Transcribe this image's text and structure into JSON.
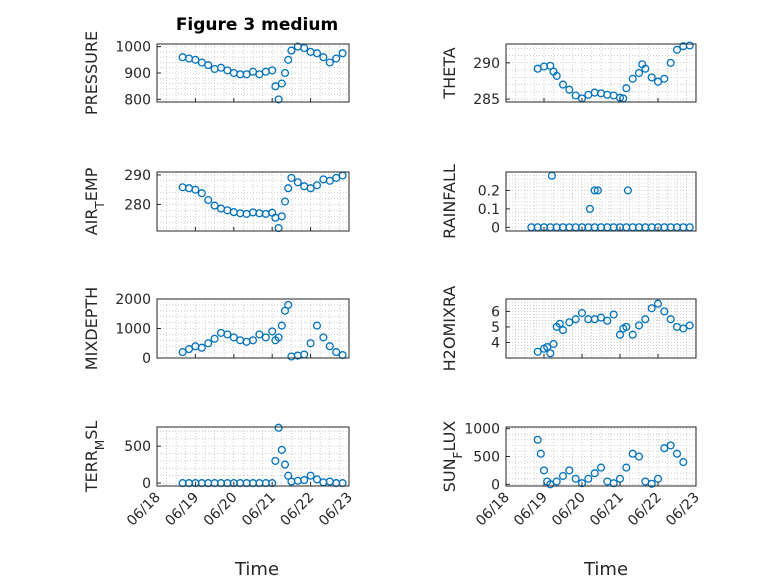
{
  "figure": {
    "title": "Figure 3 medium",
    "xlabel": "Time"
  },
  "colors": {
    "marker": "#0072BD",
    "axis": "#262626",
    "grid": "#b0b0b0"
  },
  "chart_data": [
    {
      "type": "scatter",
      "ylabel": "PRESSURE",
      "ylim": [
        790,
        1010
      ],
      "yticks": [
        800,
        900,
        1000
      ],
      "xlim": [
        "06/18",
        "06/23"
      ],
      "xticks": [
        "06/18",
        "06/19",
        "06/20",
        "06/21",
        "06/22",
        "06/23"
      ],
      "x": [
        "06/18 16:00",
        "06/18 20:00",
        "06/19 00:00",
        "06/19 04:00",
        "06/19 08:00",
        "06/19 12:00",
        "06/19 16:00",
        "06/19 20:00",
        "06/20 00:00",
        "06/20 04:00",
        "06/20 08:00",
        "06/20 12:00",
        "06/20 16:00",
        "06/20 20:00",
        "06/21 00:00",
        "06/21 02:00",
        "06/21 04:00",
        "06/21 06:00",
        "06/21 08:00",
        "06/21 10:00",
        "06/21 12:00",
        "06/21 16:00",
        "06/21 20:00",
        "06/22 00:00",
        "06/22 04:00",
        "06/22 08:00",
        "06/22 12:00",
        "06/22 16:00",
        "06/22 20:00"
      ],
      "y": [
        960,
        955,
        950,
        940,
        930,
        915,
        920,
        910,
        900,
        895,
        895,
        905,
        895,
        905,
        910,
        850,
        800,
        860,
        900,
        950,
        985,
        1000,
        995,
        980,
        975,
        960,
        940,
        955,
        975
      ]
    },
    {
      "type": "scatter",
      "ylabel": "THETA",
      "ylim": [
        284.6,
        292.6
      ],
      "yticks": [
        285,
        290
      ],
      "xlim": [
        "06/18",
        "06/23"
      ],
      "xticks": [
        "06/18",
        "06/19",
        "06/20",
        "06/21",
        "06/22",
        "06/23"
      ],
      "x": [
        "06/18 20:00",
        "06/19 00:00",
        "06/19 04:00",
        "06/19 06:00",
        "06/19 08:00",
        "06/19 12:00",
        "06/19 16:00",
        "06/19 20:00",
        "06/20 00:00",
        "06/20 04:00",
        "06/20 08:00",
        "06/20 12:00",
        "06/20 16:00",
        "06/20 20:00",
        "06/21 00:00",
        "06/21 02:00",
        "06/21 04:00",
        "06/21 08:00",
        "06/21 12:00",
        "06/21 14:00",
        "06/21 16:00",
        "06/21 20:00",
        "06/22 00:00",
        "06/22 04:00",
        "06/22 08:00",
        "06/22 12:00",
        "06/22 16:00",
        "06/22 20:00"
      ],
      "y": [
        289.2,
        289.5,
        289.6,
        288.8,
        288.2,
        287.0,
        286.3,
        285.5,
        285.1,
        285.6,
        285.9,
        285.8,
        285.6,
        285.5,
        285.2,
        285.1,
        286.5,
        287.8,
        288.6,
        289.8,
        289.2,
        288.0,
        287.4,
        287.8,
        290.0,
        291.8,
        292.3,
        292.4
      ]
    },
    {
      "type": "scatter",
      "ylabel": "AIR_TEMP",
      "ylim": [
        271,
        291
      ],
      "yticks": [
        280,
        290
      ],
      "xlim": [
        "06/18",
        "06/23"
      ],
      "xticks": [
        "06/18",
        "06/19",
        "06/20",
        "06/21",
        "06/22",
        "06/23"
      ],
      "x": [
        "06/18 16:00",
        "06/18 20:00",
        "06/19 00:00",
        "06/19 04:00",
        "06/19 08:00",
        "06/19 12:00",
        "06/19 16:00",
        "06/19 20:00",
        "06/20 00:00",
        "06/20 04:00",
        "06/20 08:00",
        "06/20 12:00",
        "06/20 16:00",
        "06/20 20:00",
        "06/21 00:00",
        "06/21 02:00",
        "06/21 04:00",
        "06/21 06:00",
        "06/21 08:00",
        "06/21 10:00",
        "06/21 12:00",
        "06/21 16:00",
        "06/21 20:00",
        "06/22 00:00",
        "06/22 04:00",
        "06/22 08:00",
        "06/22 12:00",
        "06/22 16:00",
        "06/22 20:00"
      ],
      "y": [
        285.8,
        285.5,
        285.0,
        283.8,
        281.5,
        279.6,
        278.6,
        278.0,
        277.4,
        277.0,
        276.8,
        277.3,
        277.0,
        276.8,
        277.2,
        275.5,
        272.0,
        276.0,
        281.0,
        285.5,
        289.0,
        287.5,
        286.2,
        285.5,
        286.5,
        288.5,
        288.0,
        289.0,
        289.8
      ]
    },
    {
      "type": "scatter",
      "ylabel": "RAINFALL",
      "ylim": [
        -0.02,
        0.3
      ],
      "yticks": [
        0,
        0.1,
        0.2
      ],
      "xlim": [
        "06/18",
        "06/23"
      ],
      "xticks": [
        "06/18",
        "06/19",
        "06/20",
        "06/21",
        "06/22",
        "06/23"
      ],
      "x": [
        "06/18 16:00",
        "06/18 20:00",
        "06/19 00:00",
        "06/19 04:00",
        "06/19 08:00",
        "06/19 12:00",
        "06/19 16:00",
        "06/19 20:00",
        "06/20 00:00",
        "06/20 04:00",
        "06/20 08:00",
        "06/20 12:00",
        "06/20 16:00",
        "06/20 20:00",
        "06/21 00:00",
        "06/21 04:00",
        "06/21 08:00",
        "06/21 12:00",
        "06/21 16:00",
        "06/21 20:00",
        "06/22 00:00",
        "06/22 04:00",
        "06/22 08:00",
        "06/22 12:00",
        "06/22 16:00",
        "06/22 20:00",
        "06/19 05:00",
        "06/20 05:00",
        "06/20 08:00",
        "06/20 10:00",
        "06/21 05:00"
      ],
      "y": [
        0,
        0,
        0,
        0,
        0,
        0,
        0,
        0,
        0,
        0,
        0,
        0,
        0,
        0,
        0,
        0,
        0,
        0,
        0,
        0,
        0,
        0,
        0,
        0,
        0,
        0,
        0.28,
        0.1,
        0.2,
        0.2,
        0.2
      ]
    },
    {
      "type": "scatter",
      "ylabel": "MIXDEPTH",
      "ylim": [
        0,
        2000
      ],
      "yticks": [
        0,
        1000,
        2000
      ],
      "xlim": [
        "06/18",
        "06/23"
      ],
      "xticks": [
        "06/18",
        "06/19",
        "06/20",
        "06/21",
        "06/22",
        "06/23"
      ],
      "x": [
        "06/18 16:00",
        "06/18 20:00",
        "06/19 00:00",
        "06/19 04:00",
        "06/19 08:00",
        "06/19 12:00",
        "06/19 16:00",
        "06/19 20:00",
        "06/20 00:00",
        "06/20 04:00",
        "06/20 08:00",
        "06/20 12:00",
        "06/20 16:00",
        "06/20 20:00",
        "06/21 00:00",
        "06/21 02:00",
        "06/21 04:00",
        "06/21 06:00",
        "06/21 08:00",
        "06/21 10:00",
        "06/21 12:00",
        "06/21 16:00",
        "06/21 20:00",
        "06/22 00:00",
        "06/22 04:00",
        "06/22 08:00",
        "06/22 12:00",
        "06/22 16:00",
        "06/22 20:00"
      ],
      "y": [
        200,
        300,
        400,
        350,
        500,
        650,
        850,
        800,
        700,
        600,
        550,
        600,
        800,
        700,
        900,
        600,
        700,
        1100,
        1600,
        1800,
        50,
        80,
        120,
        500,
        1100,
        700,
        400,
        200,
        100
      ]
    },
    {
      "type": "scatter",
      "ylabel": "H2OMIXRA",
      "ylim": [
        3.0,
        6.8
      ],
      "yticks": [
        4,
        5,
        6
      ],
      "xlim": [
        "06/18",
        "06/23"
      ],
      "xticks": [
        "06/18",
        "06/19",
        "06/20",
        "06/21",
        "06/22",
        "06/23"
      ],
      "x": [
        "06/18 20:00",
        "06/19 00:00",
        "06/19 02:00",
        "06/19 04:00",
        "06/19 06:00",
        "06/19 08:00",
        "06/19 10:00",
        "06/19 12:00",
        "06/19 16:00",
        "06/19 20:00",
        "06/20 00:00",
        "06/20 04:00",
        "06/20 08:00",
        "06/20 12:00",
        "06/20 16:00",
        "06/20 20:00",
        "06/21 00:00",
        "06/21 02:00",
        "06/21 04:00",
        "06/21 08:00",
        "06/21 12:00",
        "06/21 16:00",
        "06/21 20:00",
        "06/22 00:00",
        "06/22 04:00",
        "06/22 08:00",
        "06/22 12:00",
        "06/22 16:00",
        "06/22 20:00"
      ],
      "y": [
        3.4,
        3.6,
        3.7,
        3.3,
        3.9,
        5.0,
        5.2,
        4.8,
        5.3,
        5.5,
        5.9,
        5.5,
        5.5,
        5.6,
        5.4,
        5.8,
        4.5,
        4.9,
        5.0,
        4.5,
        5.1,
        5.5,
        6.2,
        6.5,
        6.0,
        5.5,
        5.0,
        4.9,
        5.1
      ]
    },
    {
      "type": "scatter",
      "ylabel": "TERR_MSL",
      "ylim": [
        -40,
        760
      ],
      "yticks": [
        0,
        500
      ],
      "xlim": [
        "06/18",
        "06/23"
      ],
      "xticks": [
        "06/18",
        "06/19",
        "06/20",
        "06/21",
        "06/22",
        "06/23"
      ],
      "x": [
        "06/18 16:00",
        "06/18 20:00",
        "06/19 00:00",
        "06/19 04:00",
        "06/19 08:00",
        "06/19 12:00",
        "06/19 16:00",
        "06/19 20:00",
        "06/20 00:00",
        "06/20 04:00",
        "06/20 08:00",
        "06/20 12:00",
        "06/20 16:00",
        "06/20 20:00",
        "06/21 00:00",
        "06/21 02:00",
        "06/21 04:00",
        "06/21 06:00",
        "06/21 08:00",
        "06/21 10:00",
        "06/21 12:00",
        "06/21 16:00",
        "06/21 20:00",
        "06/22 00:00",
        "06/22 04:00",
        "06/22 08:00",
        "06/22 12:00",
        "06/22 16:00",
        "06/22 20:00"
      ],
      "y": [
        0,
        0,
        0,
        0,
        0,
        0,
        0,
        0,
        0,
        0,
        0,
        0,
        0,
        0,
        0,
        300,
        750,
        450,
        250,
        100,
        20,
        30,
        40,
        100,
        50,
        10,
        20,
        0,
        0
      ]
    },
    {
      "type": "scatter",
      "ylabel": "SUN_FLUX",
      "ylim": [
        -30,
        1030
      ],
      "yticks": [
        0,
        500,
        1000
      ],
      "xlim": [
        "06/18",
        "06/23"
      ],
      "xticks": [
        "06/18",
        "06/19",
        "06/20",
        "06/21",
        "06/22",
        "06/23"
      ],
      "x": [
        "06/18 20:00",
        "06/18 22:00",
        "06/19 00:00",
        "06/19 02:00",
        "06/19 04:00",
        "06/19 08:00",
        "06/19 12:00",
        "06/19 16:00",
        "06/19 20:00",
        "06/20 00:00",
        "06/20 04:00",
        "06/20 08:00",
        "06/20 12:00",
        "06/20 16:00",
        "06/20 20:00",
        "06/21 00:00",
        "06/21 04:00",
        "06/21 08:00",
        "06/21 12:00",
        "06/21 16:00",
        "06/21 20:00",
        "06/22 00:00",
        "06/22 04:00",
        "06/22 08:00",
        "06/22 12:00",
        "06/22 16:00"
      ],
      "y": [
        800,
        550,
        250,
        50,
        0,
        50,
        150,
        250,
        100,
        20,
        100,
        200,
        300,
        50,
        20,
        100,
        300,
        550,
        500,
        50,
        10,
        100,
        650,
        700,
        550,
        400
      ]
    }
  ]
}
